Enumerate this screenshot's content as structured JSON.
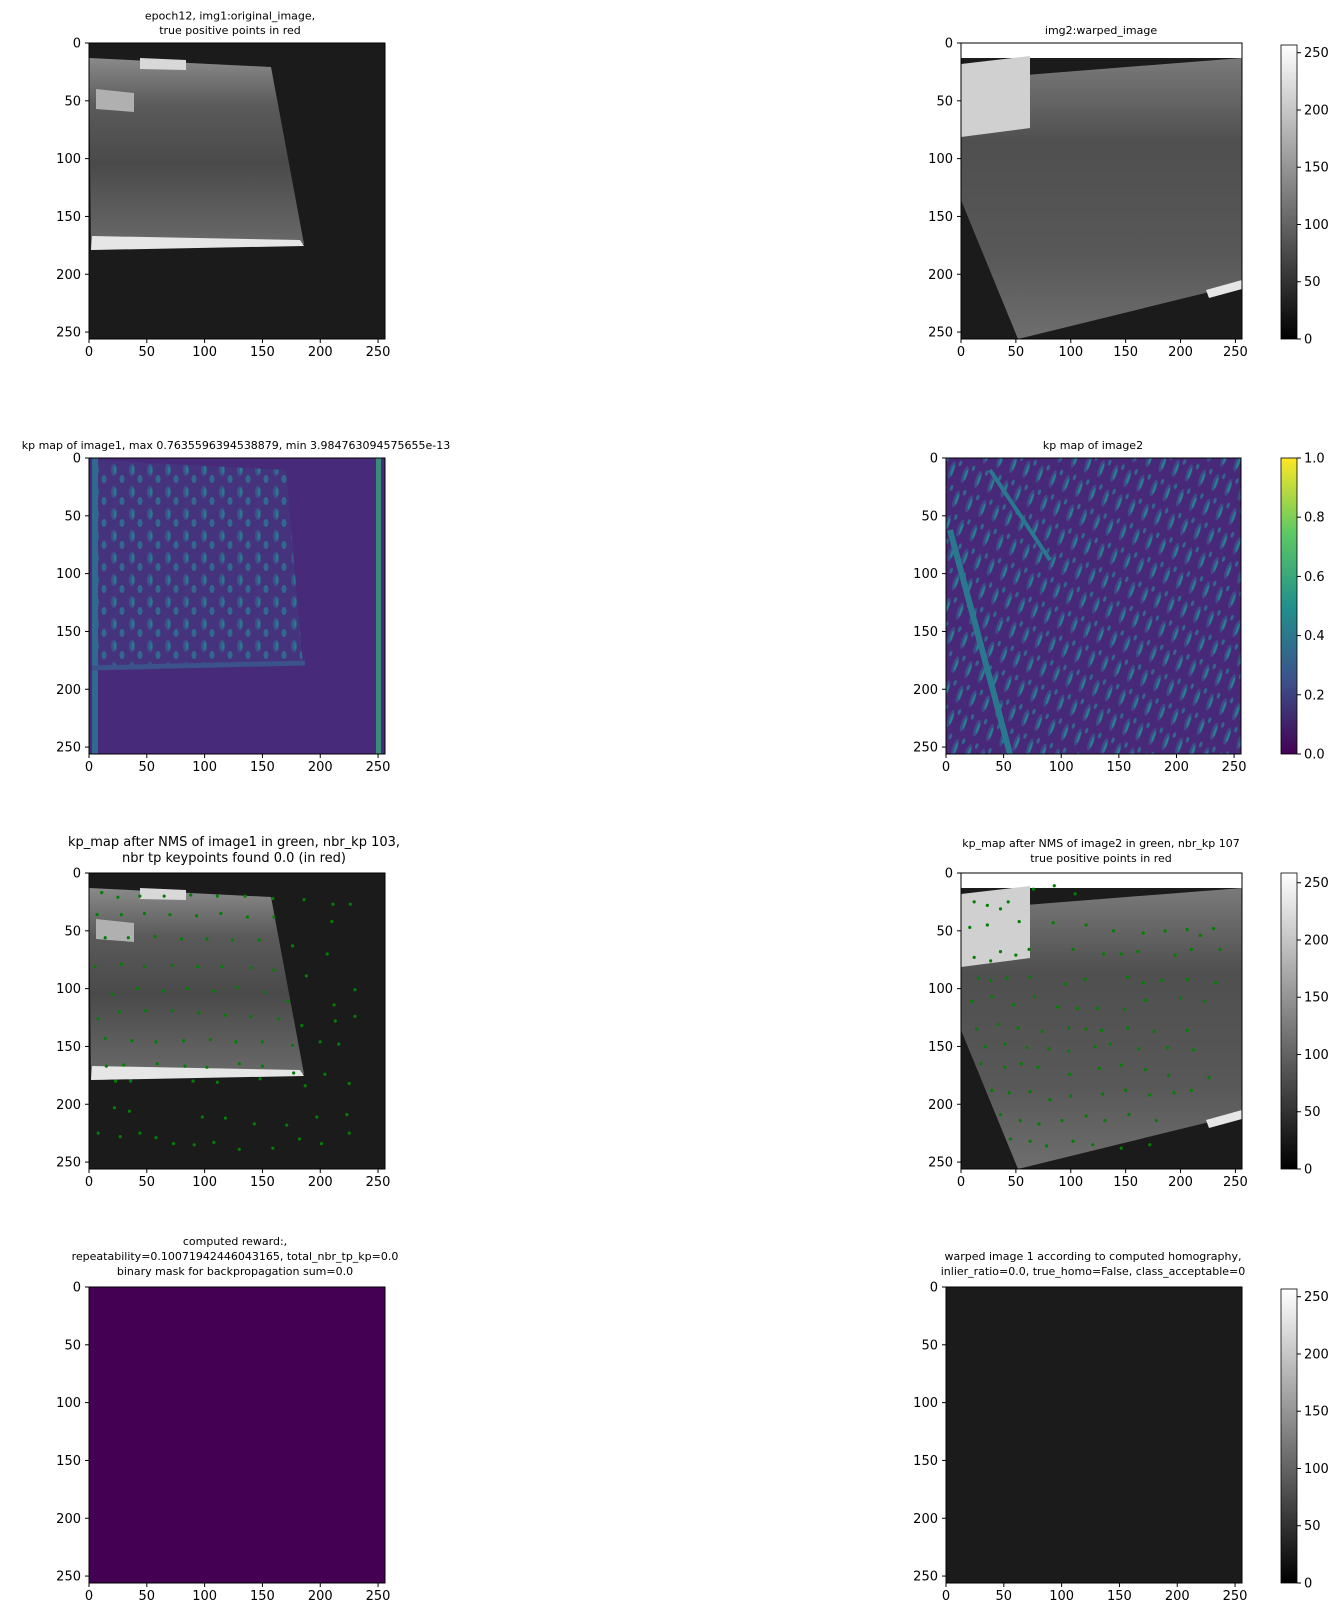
{
  "figure": {
    "background": "#ffffff",
    "ticks": [
      "0",
      "50",
      "100",
      "150",
      "200",
      "250"
    ],
    "cbar_gray_ticks": [
      "0",
      "50",
      "100",
      "150",
      "200",
      "250"
    ],
    "cbar_viridis_ticks": [
      "0.0",
      "0.2",
      "0.4",
      "0.6",
      "0.8",
      "1.0"
    ]
  },
  "panels": {
    "p1": {
      "title1": "epoch12, img1:original_image,",
      "title2": "true positive points in red"
    },
    "p2": {
      "title1": "img2:warped_image"
    },
    "p3": {
      "title1": "kp map of image1, max 0.7635596394538879, min 3.984763094575655e-13"
    },
    "p4": {
      "title1": "kp map of image2"
    },
    "p5": {
      "title1": "kp_map after NMS of image1 in green, nbr_kp 103,",
      "title2": "nbr tp keypoints found 0.0 (in red)"
    },
    "p6": {
      "title1": "kp_map after NMS of image2 in green, nbr_kp 107",
      "title2": "true positive points in red"
    },
    "p7": {
      "title1": "computed reward:,",
      "title2": "repeatability=0.10071942446043165, total_nbr_tp_kp=0.0",
      "title3": "binary mask for backpropagation sum=0.0"
    },
    "p8": {
      "title1": "warped image 1 according to computed homography,",
      "title2": "inlier_ratio=0.0, true_homo=False, class_acceptable=0"
    }
  },
  "chart_data": [
    {
      "type": "heatmap",
      "cmap": "gray",
      "content": "original image 1",
      "xlim": [
        0,
        256
      ],
      "ylim": [
        256,
        0
      ],
      "xticks": [
        0,
        50,
        100,
        150,
        200,
        250
      ],
      "yticks": [
        0,
        50,
        100,
        150,
        200,
        250
      ]
    },
    {
      "type": "heatmap",
      "cmap": "gray",
      "content": "warped image 2",
      "xlim": [
        0,
        256
      ],
      "ylim": [
        256,
        0
      ],
      "colorbar": {
        "range": [
          0,
          255
        ],
        "ticks": [
          0,
          50,
          100,
          150,
          200,
          250
        ]
      }
    },
    {
      "type": "heatmap",
      "cmap": "viridis",
      "content": "kp map of image1",
      "max": 0.7635596394538879,
      "min": 3.984763094575655e-13
    },
    {
      "type": "heatmap",
      "cmap": "viridis",
      "content": "kp map of image2",
      "colorbar": {
        "range": [
          0,
          1
        ],
        "ticks": [
          0.0,
          0.2,
          0.4,
          0.6,
          0.8,
          1.0
        ]
      }
    },
    {
      "type": "scatter",
      "content": "NMS keypoints image1 over image1",
      "color": "#008000",
      "nbr_kp": 103,
      "points": [
        [
          11,
          17
        ],
        [
          25,
          21
        ],
        [
          44,
          20
        ],
        [
          65,
          20
        ],
        [
          88,
          19
        ],
        [
          111,
          20
        ],
        [
          135,
          20
        ],
        [
          159,
          22
        ],
        [
          186,
          23
        ],
        [
          211,
          27
        ],
        [
          226,
          27
        ],
        [
          7,
          36
        ],
        [
          28,
          36
        ],
        [
          48,
          35
        ],
        [
          70,
          36
        ],
        [
          93,
          37
        ],
        [
          114,
          35
        ],
        [
          137,
          38
        ],
        [
          160,
          38
        ],
        [
          210,
          42
        ],
        [
          14,
          56
        ],
        [
          34,
          56
        ],
        [
          57,
          55
        ],
        [
          80,
          57
        ],
        [
          102,
          57
        ],
        [
          124,
          58
        ],
        [
          147,
          58
        ],
        [
          176,
          63
        ],
        [
          206,
          70
        ],
        [
          5,
          81
        ],
        [
          28,
          79
        ],
        [
          48,
          81
        ],
        [
          72,
          80
        ],
        [
          94,
          81
        ],
        [
          115,
          81
        ],
        [
          140,
          82
        ],
        [
          160,
          84
        ],
        [
          188,
          89
        ],
        [
          20,
          105
        ],
        [
          42,
          100
        ],
        [
          64,
          102
        ],
        [
          85,
          100
        ],
        [
          108,
          102
        ],
        [
          128,
          99
        ],
        [
          152,
          103
        ],
        [
          172,
          111
        ],
        [
          212,
          114
        ],
        [
          230,
          101
        ],
        [
          8,
          126
        ],
        [
          26,
          120
        ],
        [
          49,
          119
        ],
        [
          72,
          119
        ],
        [
          95,
          121
        ],
        [
          118,
          123
        ],
        [
          140,
          124
        ],
        [
          164,
          126
        ],
        [
          184,
          132
        ],
        [
          213,
          128
        ],
        [
          230,
          124
        ],
        [
          14,
          143
        ],
        [
          37,
          145
        ],
        [
          58,
          146
        ],
        [
          82,
          145
        ],
        [
          105,
          144
        ],
        [
          127,
          146
        ],
        [
          150,
          146
        ],
        [
          176,
          149
        ],
        [
          200,
          146
        ],
        [
          216,
          148
        ],
        [
          15,
          167
        ],
        [
          30,
          166
        ],
        [
          59,
          165
        ],
        [
          83,
          167
        ],
        [
          102,
          168
        ],
        [
          130,
          165
        ],
        [
          150,
          167
        ],
        [
          177,
          173
        ],
        [
          204,
          174
        ],
        [
          23,
          180
        ],
        [
          36,
          180
        ],
        [
          90,
          180
        ],
        [
          111,
          181
        ],
        [
          148,
          178
        ],
        [
          187,
          184
        ],
        [
          225,
          182
        ],
        [
          22,
          203
        ],
        [
          35,
          206
        ],
        [
          98,
          211
        ],
        [
          118,
          212
        ],
        [
          143,
          217
        ],
        [
          171,
          218
        ],
        [
          197,
          211
        ],
        [
          223,
          209
        ],
        [
          8,
          225
        ],
        [
          27,
          228
        ],
        [
          44,
          225
        ],
        [
          58,
          229
        ],
        [
          73,
          234
        ],
        [
          91,
          235
        ],
        [
          108,
          233
        ],
        [
          130,
          239
        ],
        [
          159,
          238
        ],
        [
          182,
          230
        ],
        [
          201,
          234
        ],
        [
          225,
          225
        ]
      ]
    },
    {
      "type": "scatter",
      "content": "NMS keypoints image2 over image2",
      "color": "#008000",
      "nbr_kp": 107,
      "points": [
        [
          12,
          25
        ],
        [
          66,
          14
        ],
        [
          85,
          11
        ],
        [
          104,
          18
        ],
        [
          24,
          28
        ],
        [
          36,
          31
        ],
        [
          43,
          25
        ],
        [
          8,
          47
        ],
        [
          24,
          45
        ],
        [
          53,
          42
        ],
        [
          84,
          43
        ],
        [
          114,
          45
        ],
        [
          139,
          50
        ],
        [
          166,
          52
        ],
        [
          186,
          50
        ],
        [
          206,
          49
        ],
        [
          230,
          48
        ],
        [
          218,
          54
        ],
        [
          12,
          73
        ],
        [
          27,
          76
        ],
        [
          36,
          68
        ],
        [
          50,
          71
        ],
        [
          62,
          66
        ],
        [
          102,
          66
        ],
        [
          130,
          70
        ],
        [
          146,
          70
        ],
        [
          161,
          68
        ],
        [
          195,
          71
        ],
        [
          210,
          66
        ],
        [
          236,
          66
        ],
        [
          16,
          91
        ],
        [
          27,
          93
        ],
        [
          42,
          91
        ],
        [
          63,
          90
        ],
        [
          95,
          96
        ],
        [
          113,
          92
        ],
        [
          152,
          90
        ],
        [
          166,
          95
        ],
        [
          183,
          93
        ],
        [
          206,
          92
        ],
        [
          232,
          95
        ],
        [
          10,
          111
        ],
        [
          28,
          107
        ],
        [
          48,
          114
        ],
        [
          67,
          107
        ],
        [
          88,
          116
        ],
        [
          106,
          117
        ],
        [
          124,
          117
        ],
        [
          149,
          118
        ],
        [
          168,
          110
        ],
        [
          200,
          108
        ],
        [
          222,
          111
        ],
        [
          14,
          135
        ],
        [
          34,
          131
        ],
        [
          52,
          134
        ],
        [
          74,
          137
        ],
        [
          98,
          134
        ],
        [
          114,
          135
        ],
        [
          128,
          136
        ],
        [
          152,
          134
        ],
        [
          176,
          137
        ],
        [
          206,
          136
        ],
        [
          22,
          150
        ],
        [
          40,
          148
        ],
        [
          60,
          151
        ],
        [
          80,
          152
        ],
        [
          98,
          154
        ],
        [
          122,
          150
        ],
        [
          136,
          148
        ],
        [
          162,
          152
        ],
        [
          188,
          151
        ],
        [
          212,
          153
        ],
        [
          18,
          165
        ],
        [
          40,
          168
        ],
        [
          55,
          165
        ],
        [
          70,
          168
        ],
        [
          99,
          174
        ],
        [
          126,
          169
        ],
        [
          146,
          166
        ],
        [
          168,
          170
        ],
        [
          189,
          175
        ],
        [
          226,
          177
        ],
        [
          28,
          188
        ],
        [
          44,
          190
        ],
        [
          63,
          189
        ],
        [
          81,
          196
        ],
        [
          100,
          193
        ],
        [
          129,
          191
        ],
        [
          150,
          188
        ],
        [
          172,
          192
        ],
        [
          194,
          190
        ],
        [
          210,
          188
        ],
        [
          36,
          209
        ],
        [
          54,
          214
        ],
        [
          71,
          217
        ],
        [
          92,
          214
        ],
        [
          114,
          210
        ],
        [
          131,
          214
        ],
        [
          153,
          209
        ],
        [
          178,
          214
        ],
        [
          45,
          230
        ],
        [
          63,
          232
        ],
        [
          78,
          236
        ],
        [
          102,
          232
        ],
        [
          120,
          235
        ],
        [
          146,
          238
        ],
        [
          172,
          235
        ]
      ]
    },
    {
      "type": "heatmap",
      "cmap": "viridis",
      "content": "binary mask for backpropagation",
      "value": 0.0
    },
    {
      "type": "heatmap",
      "cmap": "gray",
      "content": "warped image 1 according to computed homography",
      "value": 27,
      "colorbar": {
        "range": [
          0,
          255
        ],
        "ticks": [
          0,
          50,
          100,
          150,
          200,
          250
        ]
      }
    }
  ]
}
